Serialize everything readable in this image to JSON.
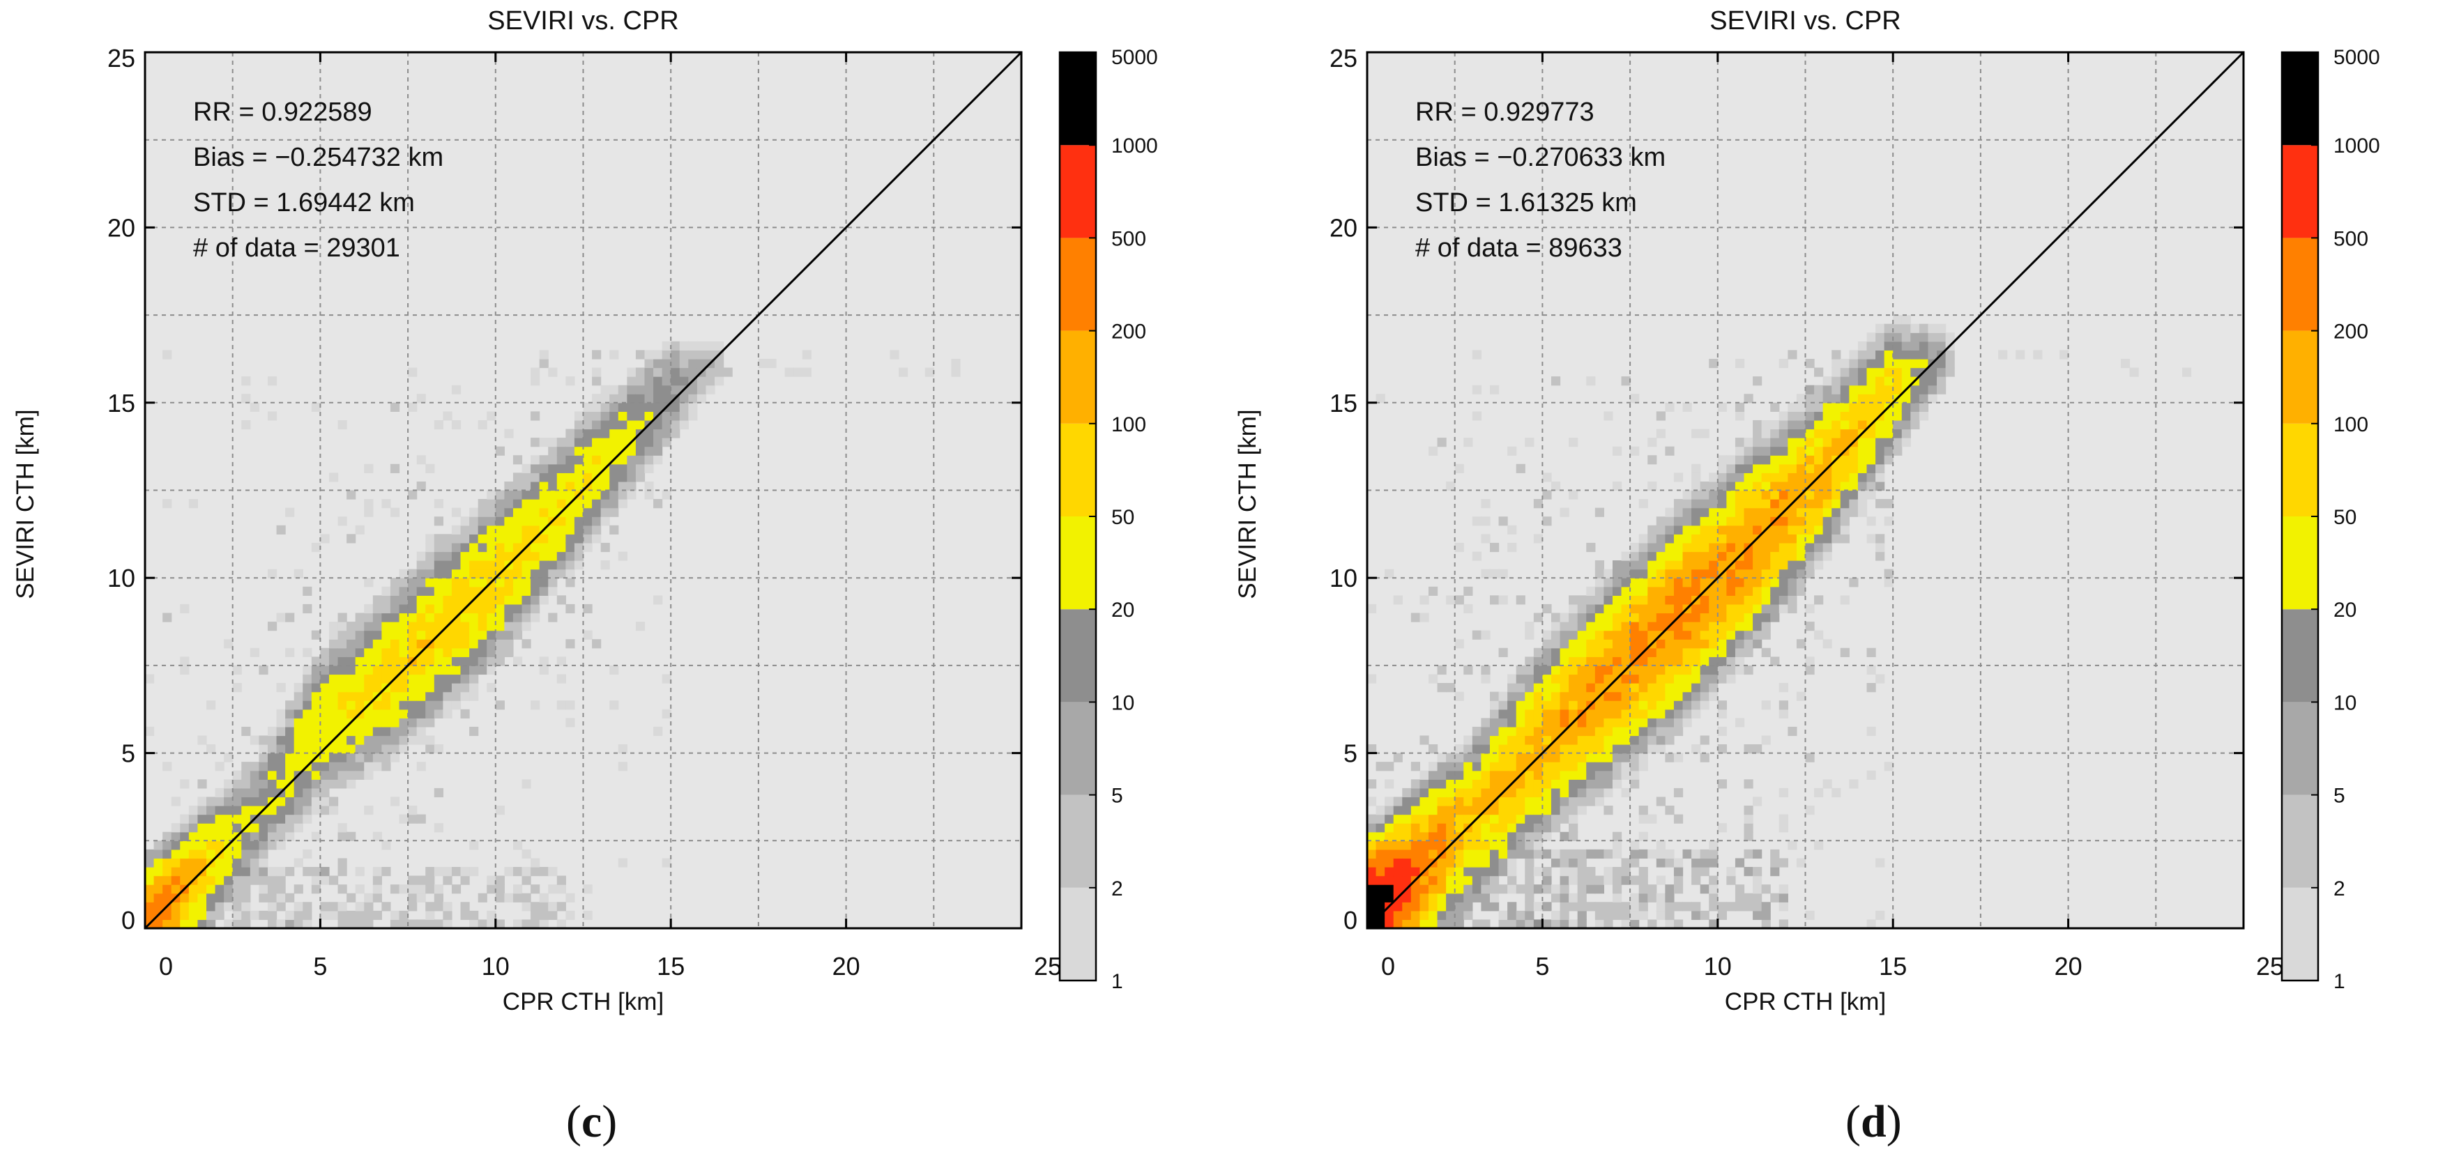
{
  "colors": {
    "plot_background": "#e6e6e6",
    "grid": "#8c8c8c",
    "diagonal": "#000000",
    "bins": [
      "#d9d9d9",
      "#c2c2c2",
      "#a8a8a8",
      "#8e8e8e",
      "#f2f200",
      "#ffd700",
      "#ffb000",
      "#ff8000",
      "#ff3010"
    ]
  },
  "colorbar": {
    "labels": [
      "5000",
      "1000",
      "500",
      "200",
      "100",
      "50",
      "20",
      "10",
      "5",
      "2",
      "1"
    ]
  },
  "chart_data": [
    {
      "type": "heatmap",
      "panel_label": "c",
      "title": "SEVIRI vs. CPR",
      "xlabel": "CPR CTH [km]",
      "ylabel": "SEVIRI CTH [km]",
      "xlim": [
        0,
        25
      ],
      "ylim": [
        0,
        25
      ],
      "xticks": [
        "0",
        "5",
        "10",
        "15",
        "20",
        "25"
      ],
      "yticks": [
        "0",
        "5",
        "10",
        "15",
        "20",
        "25"
      ],
      "grid": true,
      "reference_line": "1:1 diagonal",
      "stats": {
        "rr": "RR   = 0.922589",
        "bias": "Bias = −0.254732 km",
        "std": "STD  = 1.69442 km",
        "ndata": "# of data = 29301"
      },
      "density_model": {
        "bin_size_km": 0.25,
        "main_band": [
          {
            "x": 0.0,
            "y_center": 0.0,
            "halfwidth": 1.1,
            "peak_count": 600
          },
          {
            "x": 1.0,
            "y_center": 1.0,
            "halfwidth": 1.2,
            "peak_count": 180
          },
          {
            "x": 3.0,
            "y_center": 3.0,
            "halfwidth": 1.2,
            "peak_count": 20
          },
          {
            "x": 5.0,
            "y_center": 5.8,
            "halfwidth": 1.5,
            "peak_count": 40
          },
          {
            "x": 7.0,
            "y_center": 7.3,
            "halfwidth": 1.6,
            "peak_count": 75
          },
          {
            "x": 9.0,
            "y_center": 9.0,
            "halfwidth": 1.6,
            "peak_count": 80
          },
          {
            "x": 11.0,
            "y_center": 11.0,
            "halfwidth": 1.5,
            "peak_count": 60
          },
          {
            "x": 13.0,
            "y_center": 13.2,
            "halfwidth": 1.3,
            "peak_count": 40
          },
          {
            "x": 15.0,
            "y_center": 15.3,
            "halfwidth": 1.2,
            "peak_count": 14
          },
          {
            "x": 16.5,
            "y_center": 16.3,
            "halfwidth": 0.6,
            "peak_count": 3
          },
          {
            "x": 17.0,
            "y_center": 16.4,
            "halfwidth": 0.3,
            "peak_count": 0
          }
        ],
        "scatter_density": 0.18,
        "low_cloud_cluster": {
          "x_range": [
            0.0,
            12.0
          ],
          "y_range": [
            0.0,
            1.8
          ],
          "peak_count": 5
        }
      }
    },
    {
      "type": "heatmap",
      "panel_label": "d",
      "title": "SEVIRI vs. CPR",
      "xlabel": "CPR CTH [km]",
      "ylabel": "SEVIRI CTH [km]",
      "xlim": [
        0,
        25
      ],
      "ylim": [
        0,
        25
      ],
      "xticks": [
        "0",
        "5",
        "10",
        "15",
        "20",
        "25"
      ],
      "yticks": [
        "0",
        "5",
        "10",
        "15",
        "20",
        "25"
      ],
      "grid": true,
      "reference_line": "1:1 diagonal",
      "stats": {
        "rr": "RR   = 0.929773",
        "bias": "Bias = −0.270633 km",
        "std": "STD  = 1.61325 km",
        "ndata": "# of data = 89633"
      },
      "density_model": {
        "bin_size_km": 0.25,
        "main_band": [
          {
            "x": 0.0,
            "y_center": 0.3,
            "halfwidth": 1.3,
            "peak_count": 2500
          },
          {
            "x": 1.0,
            "y_center": 1.2,
            "halfwidth": 1.4,
            "peak_count": 600
          },
          {
            "x": 3.0,
            "y_center": 3.1,
            "halfwidth": 1.5,
            "peak_count": 90
          },
          {
            "x": 5.0,
            "y_center": 5.3,
            "halfwidth": 1.7,
            "peak_count": 140
          },
          {
            "x": 7.0,
            "y_center": 7.2,
            "halfwidth": 1.8,
            "peak_count": 200
          },
          {
            "x": 9.0,
            "y_center": 9.0,
            "halfwidth": 1.8,
            "peak_count": 260
          },
          {
            "x": 11.0,
            "y_center": 10.9,
            "halfwidth": 1.7,
            "peak_count": 220
          },
          {
            "x": 13.0,
            "y_center": 13.0,
            "halfwidth": 1.5,
            "peak_count": 130
          },
          {
            "x": 15.0,
            "y_center": 15.4,
            "halfwidth": 1.3,
            "peak_count": 60
          },
          {
            "x": 16.5,
            "y_center": 16.3,
            "halfwidth": 0.8,
            "peak_count": 8
          },
          {
            "x": 17.5,
            "y_center": 16.6,
            "halfwidth": 0.4,
            "peak_count": 0
          }
        ],
        "scatter_density": 0.32,
        "low_cloud_cluster": {
          "x_range": [
            0.0,
            12.0
          ],
          "y_range": [
            0.0,
            2.2
          ],
          "peak_count": 10
        }
      }
    }
  ]
}
